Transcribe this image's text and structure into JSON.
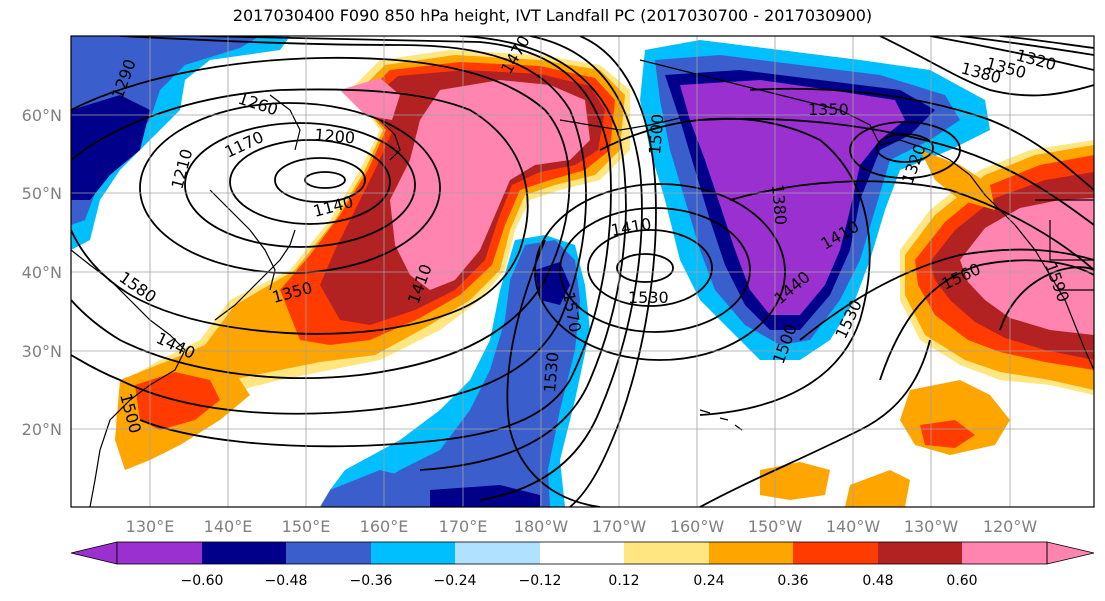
{
  "title": "2017030400 F090 850 hPa height, IVT Landfall PC (2017030700 - 2017030900)",
  "map": {
    "longitude_labels": [
      "130°E",
      "140°E",
      "150°E",
      "160°E",
      "170°E",
      "180°W",
      "170°W",
      "160°W",
      "150°W",
      "140°W",
      "130°W",
      "120°W"
    ],
    "latitude_labels": [
      "20°N",
      "30°N",
      "40°N",
      "50°N",
      "60°N"
    ]
  },
  "contour_labels": [
    "1290",
    "1320",
    "1380",
    "1350",
    "1260",
    "1200",
    "1170",
    "1140",
    "1210",
    "1470",
    "1500",
    "1530",
    "1560",
    "1590",
    "1410",
    "1440",
    "1380",
    "1350",
    "1500",
    "1410",
    "1530",
    "1580",
    "1350",
    "1440",
    "1500",
    "1570",
    "1530",
    "1410",
    "1320"
  ],
  "colorbar": {
    "ticks": [
      "−0.60",
      "−0.48",
      "−0.36",
      "−0.24",
      "−0.12",
      "0.12",
      "0.24",
      "0.36",
      "0.48",
      "0.60"
    ],
    "colors": [
      "#9b30d0",
      "#00008b",
      "#3a5fcd",
      "#00bfff",
      "#b0e2ff",
      "#ffffff",
      "#ffe680",
      "#ffa500",
      "#ff3b00",
      "#b22222",
      "#ff85b0"
    ]
  }
}
